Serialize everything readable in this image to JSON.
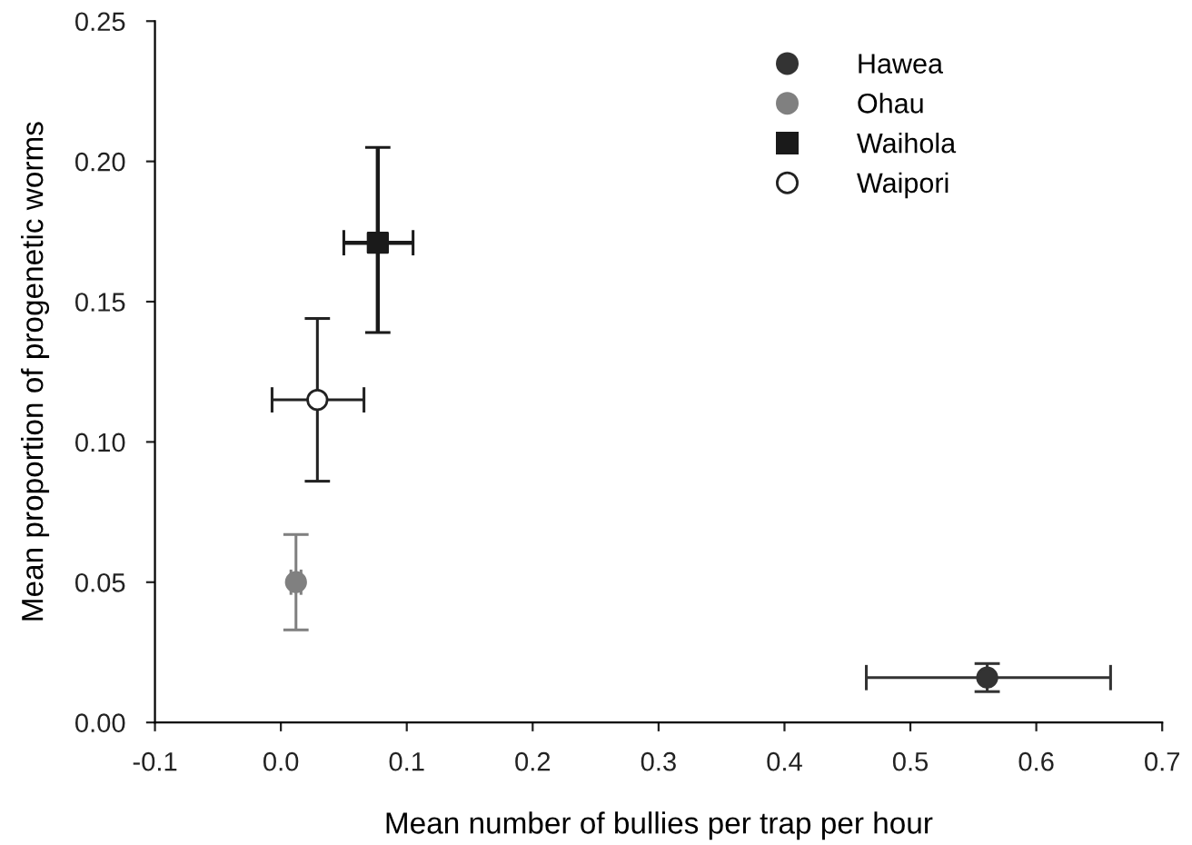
{
  "chart_data": {
    "type": "scatter",
    "xlabel": "Mean number of bullies per trap per hour",
    "ylabel": "Mean proportion of progenetic worms",
    "xlim": [
      -0.1,
      0.7
    ],
    "xticks": [
      -0.1,
      {
        "value": 0,
        "label": "0.0"
      },
      0.1,
      0.2,
      0.3,
      0.4,
      0.5,
      0.6,
      0.7
    ],
    "ylim": [
      0,
      0.25
    ],
    "yticks": [
      {
        "value": 0,
        "label": "0.00"
      },
      {
        "value": 0.05,
        "label": "0.05"
      },
      {
        "value": 0.1,
        "label": "0.10"
      },
      {
        "value": 0.15,
        "label": "0.15"
      },
      {
        "value": 0.2,
        "label": "0.20"
      },
      {
        "value": 0.25,
        "label": "0.25"
      }
    ],
    "grid": false,
    "legend": "top right",
    "series": [
      {
        "name": "Hawea",
        "color": "#333333",
        "marker": "circle",
        "x": [
          0.561
        ],
        "values": [
          0.016
        ],
        "errors": [
          [
            0.011,
            0.021
          ]
        ],
        "xerrors": [
          [
            0.465,
            0.659
          ]
        ]
      },
      {
        "name": "Ohau",
        "color": "#808080",
        "marker": "circle",
        "x": [
          0.012
        ],
        "values": [
          0.05
        ],
        "errors": [
          [
            0.033,
            0.067
          ]
        ],
        "xerrors": [
          [
            0.008,
            0.016
          ]
        ]
      },
      {
        "name": "Waihola",
        "color": "#1a1a1a",
        "marker": "square",
        "x": [
          0.077
        ],
        "values": [
          0.171
        ],
        "errors": [
          [
            0.139,
            0.205
          ]
        ],
        "xerrors": [
          [
            0.05,
            0.105
          ]
        ]
      },
      {
        "name": "Waipori",
        "color": "#ffffff",
        "marker": "circle",
        "x": [
          0.029
        ],
        "values": [
          0.115
        ],
        "errors": [
          [
            0.086,
            0.144
          ]
        ],
        "xerrors": [
          [
            -0.007,
            0.066
          ]
        ]
      }
    ]
  }
}
